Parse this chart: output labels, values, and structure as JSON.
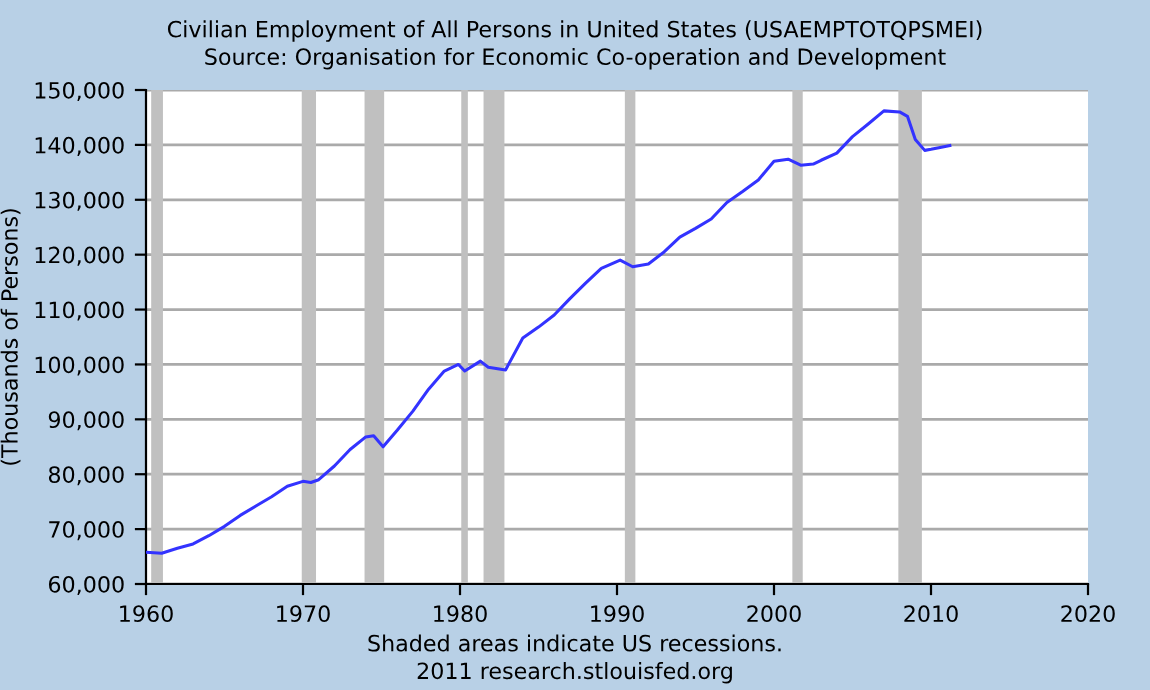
{
  "chart_data": {
    "type": "line",
    "title": "Civilian Employment of All Persons in United States (USAEMPTOTQPSMEI)",
    "subtitle": "Source: Organisation for Economic Co-operation and Development",
    "ylabel": "(Thousands of Persons)",
    "xlim": [
      1960,
      2020
    ],
    "xticks": [
      1960,
      1970,
      1980,
      1990,
      2000,
      2010,
      2020
    ],
    "ylim": [
      60000,
      150000
    ],
    "yticks": [
      {
        "value": 60000,
        "label": "60,000"
      },
      {
        "value": 70000,
        "label": "70,000"
      },
      {
        "value": 80000,
        "label": "80,000"
      },
      {
        "value": 90000,
        "label": "90,000"
      },
      {
        "value": 100000,
        "label": "100,000"
      },
      {
        "value": 110000,
        "label": "110,000"
      },
      {
        "value": 120000,
        "label": "120,000"
      },
      {
        "value": 130000,
        "label": "130,000"
      },
      {
        "value": 140000,
        "label": "140,000"
      },
      {
        "value": 150000,
        "label": "150,000"
      }
    ],
    "grid": "y",
    "legend": false,
    "series": [
      {
        "color": "#3333ff",
        "x": [
          1960,
          1961,
          1962,
          1963,
          1964,
          1965,
          1966,
          1967,
          1968,
          1969,
          1970,
          1970.5,
          1971,
          1972,
          1973,
          1974,
          1974.5,
          1975.1,
          1976,
          1977,
          1978,
          1979,
          1979.9,
          1980.3,
          1981.3,
          1981.8,
          1982.9,
          1984,
          1985,
          1986,
          1987,
          1988,
          1989,
          1990.2,
          1991,
          1992,
          1993,
          1994,
          1995,
          1996,
          1997,
          1998,
          1999,
          2000,
          2000.9,
          2001.7,
          2002.5,
          2003,
          2004,
          2005,
          2006,
          2007,
          2008,
          2008.5,
          2009,
          2009.6,
          2010,
          2010.5,
          2011.2
        ],
        "values": [
          65800,
          65600,
          66500,
          67300,
          68800,
          70500,
          72500,
          74200,
          75900,
          77800,
          78700,
          78500,
          79000,
          81500,
          84500,
          86800,
          87000,
          85000,
          88000,
          91500,
          95500,
          98800,
          100000,
          98800,
          100600,
          99500,
          99000,
          104800,
          106800,
          109000,
          112000,
          114800,
          117500,
          119000,
          117800,
          118300,
          120500,
          123200,
          124800,
          126500,
          129500,
          131500,
          133600,
          137000,
          137400,
          136300,
          136500,
          137200,
          138500,
          141500,
          143800,
          146200,
          146000,
          145200,
          141000,
          139000,
          139200,
          139500,
          139900
        ]
      }
    ],
    "bands": [
      {
        "axis": "x",
        "from": 1960.33,
        "to": 1961.08,
        "color": "#c0c0c0"
      },
      {
        "axis": "x",
        "from": 1969.92,
        "to": 1970.83,
        "color": "#c0c0c0"
      },
      {
        "axis": "x",
        "from": 1973.92,
        "to": 1975.17,
        "color": "#c0c0c0"
      },
      {
        "axis": "x",
        "from": 1980.08,
        "to": 1980.5,
        "color": "#c0c0c0"
      },
      {
        "axis": "x",
        "from": 1981.5,
        "to": 1982.83,
        "color": "#c0c0c0"
      },
      {
        "axis": "x",
        "from": 1990.5,
        "to": 1991.17,
        "color": "#c0c0c0"
      },
      {
        "axis": "x",
        "from": 2001.17,
        "to": 2001.83,
        "color": "#c0c0c0"
      },
      {
        "axis": "x",
        "from": 2007.92,
        "to": 2009.42,
        "color": "#c0c0c0"
      }
    ],
    "annotations": [
      "Shaded areas indicate US recessions.",
      "2011 research.stlouisfed.org"
    ]
  }
}
